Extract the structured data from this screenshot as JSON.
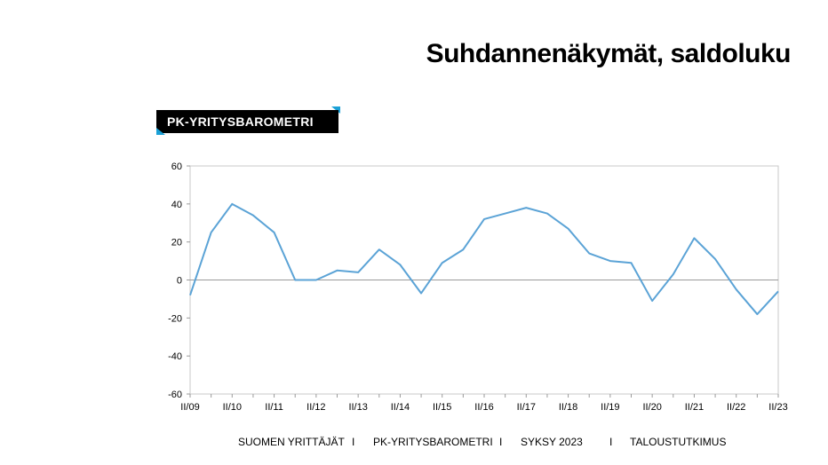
{
  "header": {
    "title": "Suhdannenäkymät, saldoluku"
  },
  "brand": {
    "label": "PK-YRITYSBAROMETRI",
    "accent_color": "#1aa0d6"
  },
  "footer": {
    "items": [
      "SUOMEN YRITTÄJÄT",
      "PK-YRITYSBAROMETRI",
      "SYKSY 2023",
      "TALOUSTUTKIMUS"
    ],
    "separator": "I"
  },
  "chart_data": {
    "type": "line",
    "title": "",
    "xlabel": "",
    "ylabel": "",
    "ylim": [
      -60,
      60
    ],
    "yticks": [
      -60,
      -40,
      -20,
      0,
      20,
      40,
      60
    ],
    "x_tick_labels": [
      "II/09",
      "II/10",
      "II/11",
      "II/12",
      "II/13",
      "II/14",
      "II/15",
      "II/16",
      "II/17",
      "II/18",
      "II/19",
      "II/20",
      "II/21",
      "II/22",
      "II/23"
    ],
    "x": [
      "II/09",
      "I/10",
      "II/10",
      "I/11",
      "II/11",
      "I/12",
      "II/12",
      "I/13",
      "II/13",
      "I/14",
      "II/14",
      "I/15",
      "II/15",
      "I/16",
      "II/16",
      "I/17",
      "II/17",
      "I/18",
      "II/18",
      "I/19",
      "II/19",
      "I/20",
      "II/20",
      "I/21",
      "II/21",
      "I/22",
      "II/22",
      "I/23",
      "II/23"
    ],
    "series": [
      {
        "values": [
          -8,
          25,
          40,
          34,
          25,
          0,
          0,
          5,
          4,
          16,
          8,
          -7,
          9,
          16,
          32,
          35,
          38,
          35,
          27,
          14,
          10,
          9,
          -11,
          3,
          22,
          11,
          -5,
          -18,
          -6
        ]
      }
    ],
    "line_color": "#5ba3d6",
    "grid": false,
    "zero_line": true
  }
}
